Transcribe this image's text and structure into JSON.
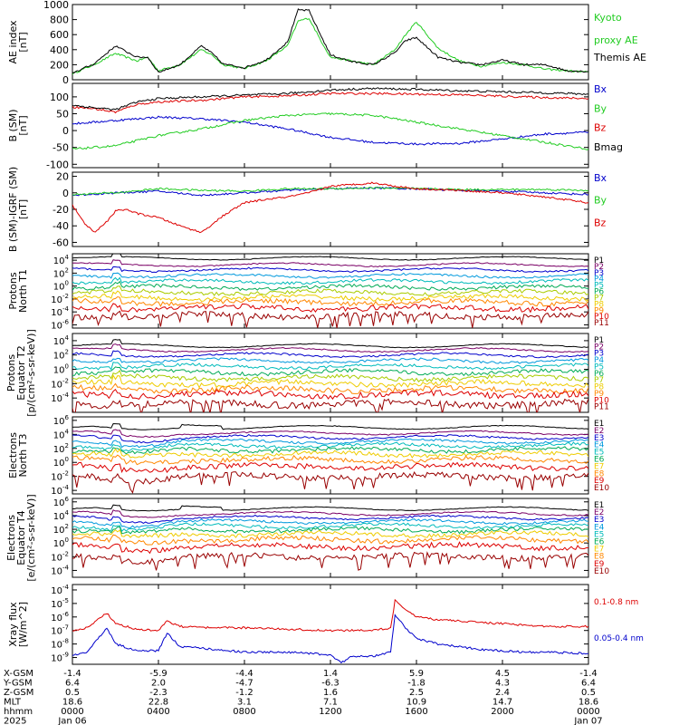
{
  "chart_data": {
    "type": "line",
    "panels": [
      {
        "id": "ae",
        "ylabel": [
          "AE index",
          "[nT]"
        ],
        "yticks": [
          0,
          200,
          400,
          600,
          800,
          1000
        ],
        "ylim": [
          0,
          1000
        ],
        "log": false,
        "legend": [
          {
            "text": "Kyoto",
            "color": "#22cc22"
          },
          {
            "text": "proxy AE",
            "color": "#22cc22"
          },
          {
            "text": "Themis AE",
            "color": "#000000"
          }
        ],
        "series": [
          {
            "name": "Kyoto proxy AE",
            "color": "#22cc22",
            "x": [
              0,
              1,
              2,
              3,
              3.5,
              4,
              5,
              6,
              6.5,
              7,
              8,
              9,
              10,
              10.5,
              11,
              11.5,
              12,
              13,
              14,
              15,
              15.5,
              16,
              17,
              18,
              19,
              20,
              21,
              22,
              23,
              24
            ],
            "y": [
              80,
              200,
              350,
              250,
              300,
              120,
              200,
              400,
              330,
              200,
              150,
              250,
              450,
              780,
              820,
              550,
              300,
              250,
              200,
              400,
              600,
              770,
              420,
              250,
              180,
              230,
              200,
              140,
              120,
              100
            ]
          },
          {
            "name": "Themis AE",
            "color": "#000000",
            "x": [
              0,
              1,
              2,
              3,
              3.5,
              4,
              5,
              6,
              6.5,
              7,
              8,
              9,
              10,
              10.5,
              11,
              11.5,
              12,
              13,
              14,
              15,
              15.5,
              16,
              17,
              18,
              19,
              20,
              21,
              22,
              23,
              24
            ],
            "y": [
              90,
              210,
              450,
              300,
              300,
              100,
              200,
              450,
              350,
              210,
              160,
              260,
              500,
              930,
              920,
              620,
              330,
              240,
              200,
              360,
              520,
              560,
              300,
              230,
              200,
              260,
              200,
              200,
              120,
              110
            ]
          }
        ]
      },
      {
        "id": "bsm",
        "ylabel": [
          "B (SM)",
          "[nT]"
        ],
        "yticks": [
          -100,
          -50,
          0,
          50,
          100
        ],
        "ylim": [
          -110,
          140
        ],
        "log": false,
        "legend": [
          {
            "text": "Bx",
            "color": "#0000cc"
          },
          {
            "text": "By",
            "color": "#22cc22"
          },
          {
            "text": "Bz",
            "color": "#dd0000"
          },
          {
            "text": "Bmag",
            "color": "#000000"
          }
        ],
        "series": [
          {
            "name": "Bx",
            "color": "#0000cc",
            "x": [
              0,
              2,
              4,
              6,
              8,
              10,
              12,
              14,
              16,
              18,
              20,
              22,
              24
            ],
            "y": [
              20,
              30,
              40,
              35,
              25,
              5,
              -20,
              -35,
              -40,
              -38,
              -25,
              -10,
              -5
            ]
          },
          {
            "name": "By",
            "color": "#22cc22",
            "x": [
              0,
              2,
              4,
              6,
              8,
              10,
              12,
              14,
              16,
              18,
              20,
              22,
              24
            ],
            "y": [
              -55,
              -45,
              -15,
              5,
              30,
              45,
              50,
              45,
              25,
              5,
              -15,
              -35,
              -55
            ]
          },
          {
            "name": "Bz",
            "color": "#dd0000",
            "x": [
              0,
              1,
              2,
              3,
              4,
              6,
              8,
              10,
              12,
              14,
              16,
              18,
              20,
              22,
              24
            ],
            "y": [
              70,
              65,
              55,
              78,
              85,
              90,
              100,
              103,
              110,
              110,
              108,
              106,
              102,
              98,
              95
            ]
          },
          {
            "name": "Bmag",
            "color": "#000000",
            "x": [
              0,
              1,
              2,
              3,
              4,
              6,
              8,
              10,
              12,
              14,
              16,
              18,
              20,
              22,
              24
            ],
            "y": [
              75,
              68,
              62,
              85,
              95,
              100,
              105,
              110,
              120,
              125,
              122,
              118,
              115,
              112,
              108
            ]
          }
        ]
      },
      {
        "id": "bdiff",
        "ylabel": [
          "B (SM)-IGRF (SM)",
          "[nT]"
        ],
        "yticks": [
          -60,
          -40,
          -20,
          0,
          20
        ],
        "ylim": [
          -65,
          25
        ],
        "log": false,
        "legend": [
          {
            "text": "Bx",
            "color": "#0000cc"
          },
          {
            "text": "By",
            "color": "#22cc22"
          },
          {
            "text": "Bz",
            "color": "#dd0000"
          }
        ],
        "series": [
          {
            "name": "Bx",
            "color": "#0000cc",
            "x": [
              0,
              2,
              4,
              6,
              8,
              10,
              12,
              14,
              16,
              18,
              20,
              22,
              24
            ],
            "y": [
              -3,
              0,
              2,
              -3,
              0,
              3,
              5,
              6,
              5,
              3,
              2,
              0,
              -2
            ]
          },
          {
            "name": "By",
            "color": "#22cc22",
            "x": [
              0,
              2,
              4,
              6,
              8,
              10,
              12,
              14,
              16,
              18,
              20,
              22,
              24
            ],
            "y": [
              -2,
              0,
              5,
              3,
              2,
              5,
              5,
              6,
              5,
              4,
              4,
              4,
              3
            ]
          },
          {
            "name": "Bz",
            "color": "#dd0000",
            "x": [
              0,
              0.5,
              1,
              1.5,
              2,
              2.5,
              3,
              4,
              5,
              6,
              7,
              8,
              9,
              10,
              11,
              12,
              13,
              14,
              15,
              16,
              18,
              20,
              22,
              24
            ],
            "y": [
              -15,
              -35,
              -48,
              -38,
              -22,
              -20,
              -25,
              -30,
              -40,
              -48,
              -28,
              -12,
              -8,
              -5,
              0,
              8,
              10,
              12,
              8,
              5,
              3,
              0,
              -5,
              -12
            ]
          }
        ]
      },
      {
        "id": "p_north",
        "ylabel": [
          "Protons",
          "North T1"
        ],
        "ytick_exps": [
          4,
          2,
          0,
          -2,
          -4,
          -6
        ],
        "ylim_exp": [
          -6.5,
          5
        ],
        "log": true,
        "legend": [
          {
            "text": "P1",
            "color": "#000000"
          },
          {
            "text": "P2",
            "color": "#7a0066"
          },
          {
            "text": "P3",
            "color": "#0000cc"
          },
          {
            "text": "P4",
            "color": "#0099dd"
          },
          {
            "text": "P5",
            "color": "#00bbbb"
          },
          {
            "text": "P6",
            "color": "#00aa55"
          },
          {
            "text": "P7",
            "color": "#aacc00"
          },
          {
            "text": "P8",
            "color": "#eecc00"
          },
          {
            "text": "P9",
            "color": "#ff8800"
          },
          {
            "text": "P10",
            "color": "#dd0000"
          },
          {
            "text": "P11",
            "color": "#990000"
          }
        ],
        "levels": [
          4.3,
          3.3,
          2.5,
          1.6,
          0.7,
          -0.2,
          -1.0,
          -1.8,
          -2.5,
          -3.4,
          -4.6
        ]
      },
      {
        "id": "p_eq",
        "ylabel": [
          "Protons",
          "Equator T2",
          "[p/(cm²-s-sr-keV)]"
        ],
        "ytick_exps": [
          4,
          2,
          0,
          -2,
          -4
        ],
        "ylim_exp": [
          -6,
          5
        ],
        "log": true,
        "legend": [
          {
            "text": "P1",
            "color": "#000000"
          },
          {
            "text": "P2",
            "color": "#7a0066"
          },
          {
            "text": "P3",
            "color": "#0000cc"
          },
          {
            "text": "P4",
            "color": "#0099dd"
          },
          {
            "text": "P5",
            "color": "#00bbbb"
          },
          {
            "text": "P6",
            "color": "#00aa55"
          },
          {
            "text": "P7",
            "color": "#aacc00"
          },
          {
            "text": "P8",
            "color": "#eecc00"
          },
          {
            "text": "P9",
            "color": "#ff8800"
          },
          {
            "text": "P10",
            "color": "#dd0000"
          },
          {
            "text": "P11",
            "color": "#990000"
          }
        ],
        "levels": [
          3.3,
          2.7,
          2.0,
          1.2,
          0.4,
          -0.4,
          -1.2,
          -2.0,
          -2.8,
          -3.5,
          -4.8
        ]
      },
      {
        "id": "e_north",
        "ylabel": [
          "Electrons",
          "North T3"
        ],
        "ytick_exps": [
          6,
          4,
          2,
          0,
          -2,
          -4
        ],
        "ylim_exp": [
          -4.5,
          6.5
        ],
        "log": true,
        "legend": [
          {
            "text": "E1",
            "color": "#000000"
          },
          {
            "text": "E2",
            "color": "#7a0066"
          },
          {
            "text": "E3",
            "color": "#0000cc"
          },
          {
            "text": "E4",
            "color": "#0099dd"
          },
          {
            "text": "E5",
            "color": "#00bbbb"
          },
          {
            "text": "E6",
            "color": "#00aa55"
          },
          {
            "text": "E7",
            "color": "#eecc00"
          },
          {
            "text": "E8",
            "color": "#ff8800"
          },
          {
            "text": "E9",
            "color": "#dd0000"
          },
          {
            "text": "E10",
            "color": "#990000"
          }
        ],
        "levels": [
          5.0,
          4.2,
          3.6,
          3.0,
          2.4,
          1.8,
          1.2,
          0.4,
          -0.6,
          -2.0
        ]
      },
      {
        "id": "e_eq",
        "ylabel": [
          "Electrons",
          "Equator T4",
          "[e/(cm²-s-sr-keV)]"
        ],
        "ytick_exps": [
          6,
          4,
          2,
          0,
          -2,
          -4
        ],
        "ylim_exp": [
          -5,
          6.5
        ],
        "log": true,
        "legend": [
          {
            "text": "E1",
            "color": "#000000"
          },
          {
            "text": "E2",
            "color": "#7a0066"
          },
          {
            "text": "E3",
            "color": "#0000cc"
          },
          {
            "text": "E4",
            "color": "#0099dd"
          },
          {
            "text": "E5",
            "color": "#00bbbb"
          },
          {
            "text": "E6",
            "color": "#00aa55"
          },
          {
            "text": "E7",
            "color": "#eecc00"
          },
          {
            "text": "E8",
            "color": "#ff8800"
          },
          {
            "text": "E9",
            "color": "#dd0000"
          },
          {
            "text": "E10",
            "color": "#990000"
          }
        ],
        "levels": [
          5.0,
          4.3,
          3.7,
          3.1,
          2.5,
          1.9,
          1.3,
          0.5,
          -0.5,
          -2.0
        ]
      },
      {
        "id": "xray",
        "ylabel": [
          "Xray flux",
          "[W/m^2]"
        ],
        "ytick_exps": [
          -4,
          -5,
          -6,
          -7,
          -8,
          -9
        ],
        "ylim_exp": [
          -9.5,
          -3.6
        ],
        "log": true,
        "legend": [
          {
            "text": "0.1-0.8 nm",
            "color": "#dd0000"
          },
          {
            "text": "0.05-0.4 nm",
            "color": "#0000cc"
          }
        ],
        "series": [
          {
            "name": "0.1-0.8 nm",
            "color": "#dd0000",
            "x": [
              0,
              0.7,
              1.6,
              2,
              3,
              4,
              4.4,
              5,
              6,
              8,
              10,
              12,
              14,
              14.8,
              15,
              15.5,
              16,
              17,
              18,
              19,
              20,
              21,
              22,
              24
            ],
            "y": [
              -7,
              -6.8,
              -5.7,
              -6.5,
              -6.9,
              -7,
              -6.3,
              -6.7,
              -6.8,
              -6.8,
              -6.9,
              -7,
              -7,
              -6.8,
              -4.8,
              -5.5,
              -6,
              -6.2,
              -6.3,
              -6.4,
              -6.5,
              -6.6,
              -6.7,
              -6.7
            ]
          },
          {
            "name": "0.05-0.4 nm",
            "color": "#0000cc",
            "x": [
              0,
              0.7,
              1.6,
              2,
              3,
              4,
              4.4,
              5,
              6,
              8,
              10,
              12,
              12.5,
              13,
              14,
              14.8,
              15,
              15.5,
              16,
              17,
              18,
              19,
              20,
              21,
              22,
              24
            ],
            "y": [
              -8.8,
              -8.6,
              -6.8,
              -8,
              -8.5,
              -8.5,
              -7.2,
              -8.2,
              -8.3,
              -8.6,
              -8.6,
              -8.8,
              -9.4,
              -8.9,
              -8.9,
              -8.6,
              -5.8,
              -6.8,
              -7.6,
              -8,
              -8.2,
              -8.4,
              -8.5,
              -8.6,
              -8.6,
              -8.7
            ]
          }
        ]
      }
    ],
    "x": {
      "type": "time",
      "range_hours": [
        0,
        24
      ],
      "tick_hours": [
        0,
        4,
        8,
        12,
        16,
        20,
        24
      ]
    },
    "ephemeris": {
      "row_labels": [
        "X-GSM",
        "Y-GSM",
        "Z-GSM",
        "MLT",
        "hhmm",
        "2025"
      ],
      "columns": [
        [
          "-1.4",
          "6.4",
          "0.5",
          "18.6",
          "0000",
          "Jan 06"
        ],
        [
          "-5.9",
          "2.0",
          "-2.3",
          "22.8",
          "0400",
          ""
        ],
        [
          "-4.4",
          "-4.7",
          "-1.2",
          "3.1",
          "0800",
          ""
        ],
        [
          "1.4",
          "-6.3",
          "1.6",
          "7.1",
          "1200",
          ""
        ],
        [
          "5.9",
          "-1.8",
          "2.5",
          "10.9",
          "1600",
          ""
        ],
        [
          "4.5",
          "4.3",
          "2.4",
          "14.7",
          "2000",
          ""
        ],
        [
          "-1.4",
          "6.4",
          "0.5",
          "18.6",
          "0000",
          "Jan 07"
        ]
      ]
    }
  }
}
